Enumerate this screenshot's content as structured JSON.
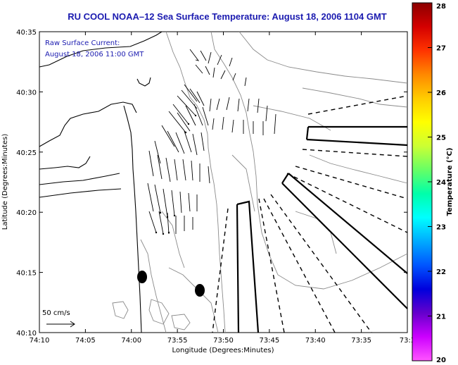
{
  "title": "RU COOL  NOAA–12  Sea Surface Temperature:  August 18, 2006 1104 GMT",
  "annotation": {
    "line1": "Raw Surface Current:",
    "line2": "August 18, 2006 11:00 GMT"
  },
  "scale_label": "50 cm/s",
  "x_axis": {
    "label": "Longitude (Degrees:Minutes)",
    "ticks": [
      "74:10",
      "74:05",
      "74:00",
      "73:55",
      "73:50",
      "73:45",
      "73:40",
      "73:35",
      "73:3"
    ]
  },
  "y_axis": {
    "label": "Latitude (Degrees:Minutes)",
    "ticks": [
      "40:35",
      "40:30",
      "40:25",
      "40:20",
      "40:15",
      "40:10"
    ]
  },
  "colorbar": {
    "label": "Temperature (°C)",
    "ticks": [
      "28",
      "27",
      "26",
      "25",
      "24",
      "23",
      "22",
      "21",
      "20"
    ],
    "colors": [
      "#8b0000",
      "#d40000",
      "#ff3300",
      "#ff8800",
      "#ffcc00",
      "#ffff00",
      "#ccff33",
      "#66ff66",
      "#00ffaa",
      "#00ffff",
      "#00aaff",
      "#0055ff",
      "#0000dd",
      "#6600cc",
      "#cc00ff",
      "#ff55ff"
    ]
  },
  "colors": {
    "title": "#1b1bb0",
    "annotation": "#1b1bb0"
  }
}
